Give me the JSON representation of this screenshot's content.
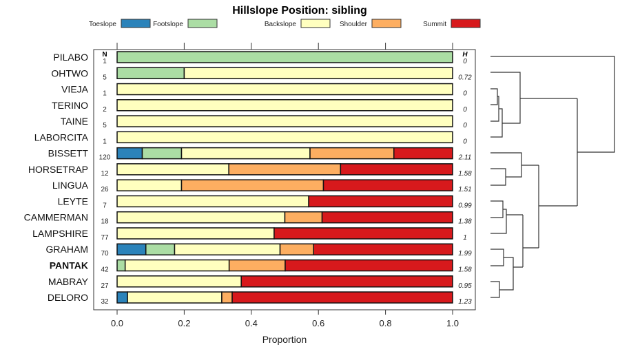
{
  "chart_data": {
    "type": "bar",
    "orientation": "horizontal-stacked",
    "title": "Hillslope Position: sibling",
    "xlabel": "Proportion",
    "ylabel": "",
    "xlim": [
      0,
      1
    ],
    "x_ticks": [
      "0.0",
      "0.2",
      "0.4",
      "0.6",
      "0.8",
      "1.0"
    ],
    "legend_placement": "top",
    "n_header": "N",
    "h_header": "H",
    "categories": [
      "PILABO",
      "OHTWO",
      "VIEJA",
      "TERINO",
      "TAINE",
      "LABORCITA",
      "BISSETT",
      "HORSETRAP",
      "LINGUA",
      "LEYTE",
      "CAMMERMAN",
      "LAMPSHIRE",
      "GRAHAM",
      "PANTAK",
      "MABRAY",
      "DELORO"
    ],
    "highlighted_category": "PANTAK",
    "n": [
      "1",
      "5",
      "1",
      "2",
      "5",
      "1",
      "120",
      "12",
      "26",
      "7",
      "18",
      "77",
      "70",
      "42",
      "27",
      "32"
    ],
    "h": [
      "0",
      "0.72",
      "0",
      "0",
      "0",
      "0",
      "2.11",
      "1.58",
      "1.51",
      "0.99",
      "1.38",
      "1",
      "1.99",
      "1.58",
      "0.95",
      "1.23"
    ],
    "series": [
      {
        "name": "Toeslope",
        "color": "#2B83BA",
        "values": [
          0,
          0,
          0,
          0,
          0,
          0,
          0.075,
          0,
          0,
          0,
          0,
          0,
          0.0857,
          0,
          0,
          0.031
        ]
      },
      {
        "name": "Footslope",
        "color": "#ABDDA4",
        "values": [
          1,
          0.2,
          0,
          0,
          0,
          0,
          0.117,
          0,
          0,
          0,
          0,
          0,
          0.0857,
          0.024,
          0,
          0
        ]
      },
      {
        "name": "Backslope",
        "color": "#FFFFBF",
        "values": [
          0,
          0.8,
          1,
          1,
          1,
          1,
          0.383,
          0.333,
          0.192,
          0.571,
          0.5,
          0.468,
          0.3143,
          0.31,
          0.37,
          0.281
        ]
      },
      {
        "name": "Shoulder",
        "color": "#FDAE61",
        "values": [
          0,
          0,
          0,
          0,
          0,
          0,
          0.25,
          0.333,
          0.423,
          0,
          0.111,
          0,
          0.1,
          0.167,
          0,
          0.031
        ]
      },
      {
        "name": "Summit",
        "color": "#D7191C",
        "values": [
          0,
          0,
          0,
          0,
          0,
          0,
          0.175,
          0.334,
          0.385,
          0.429,
          0.389,
          0.532,
          0.4143,
          0.499,
          0.63,
          0.657
        ]
      }
    ]
  }
}
